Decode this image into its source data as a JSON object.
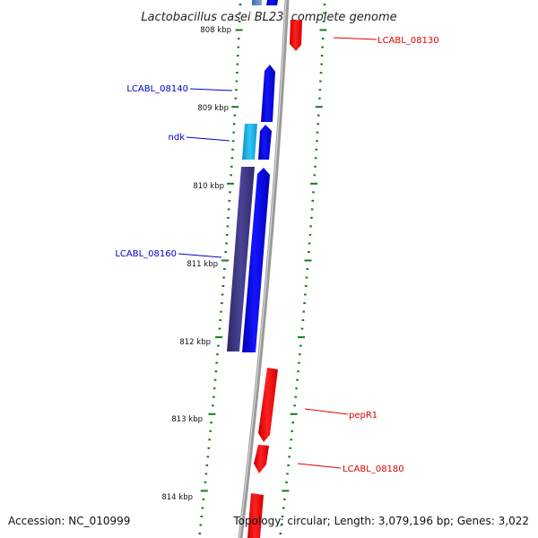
{
  "title": "Lactobacillus casei BL23, complete genome",
  "footer": {
    "accession": "Accession: NC_010999",
    "topology": "Topology: circular; Length: 3,079,196 bp; Genes: 3,022"
  },
  "colors": {
    "reverse_strand_gene": "#ff0000",
    "forward_strand_gene": "#0000ee",
    "ndk_gene": "#1ab7ea",
    "long_gene": "#3f3a84",
    "backbone": "#8a8a8a",
    "tick": "#1a7a1a"
  },
  "scale": {
    "unit": "kbp",
    "labels": [
      "808 kbp",
      "809 kbp",
      "810 kbp",
      "811 kbp",
      "812 kbp",
      "813 kbp",
      "814 kbp"
    ]
  },
  "genes": [
    {
      "label": "LCABL_08130",
      "strand": "reverse",
      "color": "#ff0000"
    },
    {
      "label": "LCABL_08140",
      "strand": "forward",
      "color": "#0000ee"
    },
    {
      "label": "ndk",
      "strand": "forward",
      "color": "#0000ee"
    },
    {
      "label": "LCABL_08160",
      "strand": "forward",
      "color": "#0000ee"
    },
    {
      "label": "pepR1",
      "strand": "reverse",
      "color": "#ff0000"
    },
    {
      "label": "LCABL_08180",
      "strand": "reverse",
      "color": "#ff0000"
    }
  ]
}
